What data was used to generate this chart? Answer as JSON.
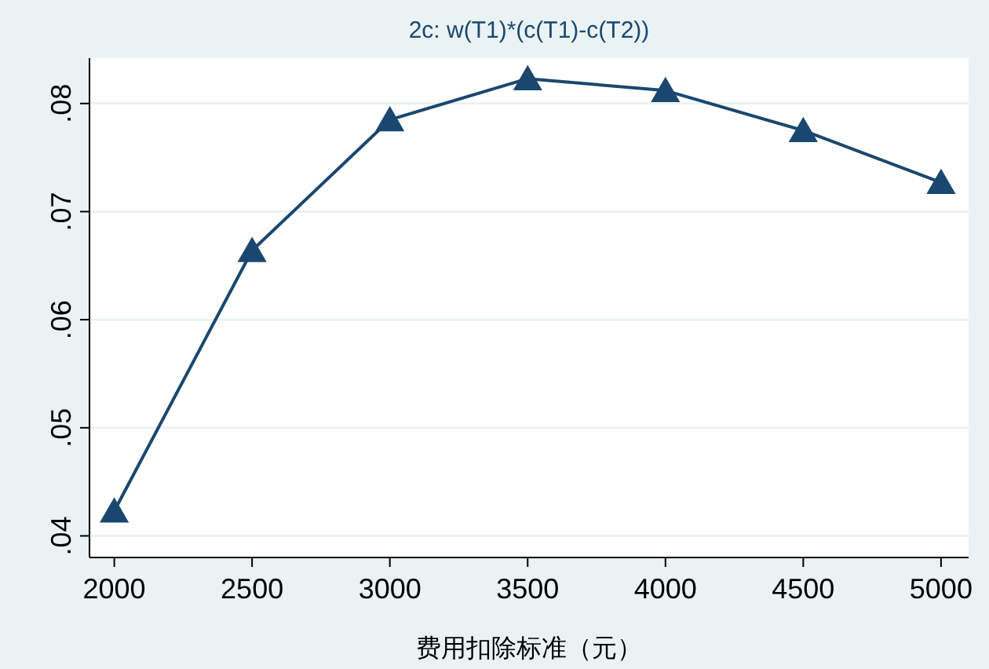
{
  "chart_data": {
    "type": "line",
    "title": "2c: w(T1)*(c(T1)-c(T2))",
    "xlabel": "费用扣除标准（元）",
    "x": [
      2000,
      2500,
      3000,
      3500,
      4000,
      4500,
      5000
    ],
    "series": [
      {
        "color": "#1a476f",
        "values": [
          0.0423,
          0.0664,
          0.0785,
          0.0823,
          0.0812,
          0.0775,
          0.0727
        ]
      }
    ],
    "xlim": [
      1910,
      5100
    ],
    "xticks": [
      2000,
      2500,
      3000,
      3500,
      4000,
      4500,
      5000
    ],
    "ylim": [
      0.038,
      0.0842
    ],
    "yticks": [
      {
        "value": 0.04,
        "label": ".04"
      },
      {
        "value": 0.05,
        "label": ".05"
      },
      {
        "value": 0.06,
        "label": ".06"
      },
      {
        "value": 0.07,
        "label": ".07"
      },
      {
        "value": 0.08,
        "label": ".08"
      }
    ],
    "grid": "y",
    "marker": "triangle",
    "line_style": "solid"
  }
}
